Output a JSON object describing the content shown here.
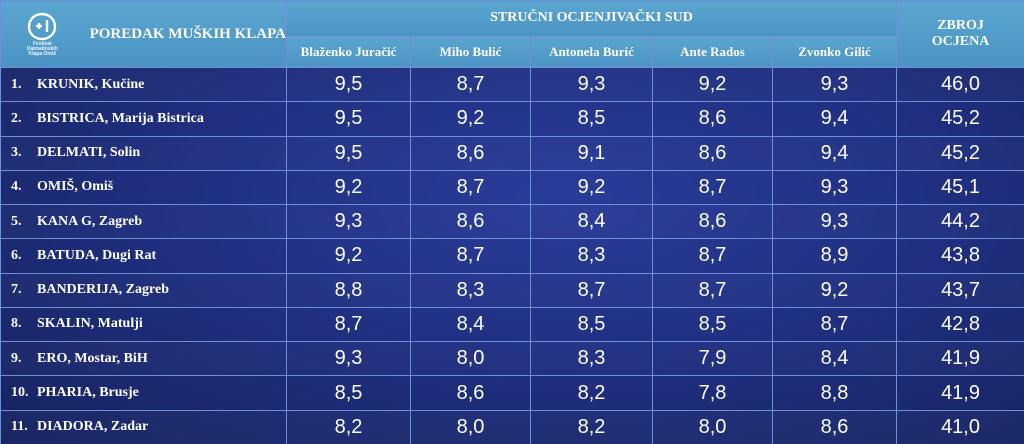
{
  "header": {
    "logo_text": [
      "Festival",
      "Dalmatinskih",
      "Klapa Omiš"
    ],
    "title": "POREDAK MUŠKIH KLAPA",
    "group_label": "STRUČNI OCJENJIVAČKI SUD",
    "total_label_line1": "ZBROJ",
    "total_label_line2": "OCJENA",
    "judges": [
      "Blaženko Juračić",
      "Miho Bulić",
      "Antonela Burić",
      "Ante Rados",
      "Zvonko Gilić"
    ]
  },
  "colors": {
    "header_bg": "#4f9ac8",
    "body_bg": "#1e2d7c",
    "grid": "#6f8fd8",
    "text": "#ffffff"
  },
  "rows": [
    {
      "rank": "1.",
      "name": "KRUNIK, Kučine",
      "scores": [
        "9,5",
        "8,7",
        "9,3",
        "9,2",
        "9,3"
      ],
      "total": "46,0"
    },
    {
      "rank": "2.",
      "name": "BISTRICA, Marija Bistrica",
      "scores": [
        "9,5",
        "9,2",
        "8,5",
        "8,6",
        "9,4"
      ],
      "total": "45,2"
    },
    {
      "rank": "3.",
      "name": "DELMATI, Solin",
      "scores": [
        "9,5",
        "8,6",
        "9,1",
        "8,6",
        "9,4"
      ],
      "total": "45,2"
    },
    {
      "rank": "4.",
      "name": "OMIŠ, Omiš",
      "scores": [
        "9,2",
        "8,7",
        "9,2",
        "8,7",
        "9,3"
      ],
      "total": "45,1"
    },
    {
      "rank": "5.",
      "name": "KANA G, Zagreb",
      "scores": [
        "9,3",
        "8,6",
        "8,4",
        "8,6",
        "9,3"
      ],
      "total": "44,2"
    },
    {
      "rank": "6.",
      "name": "BATUDA, Dugi Rat",
      "scores": [
        "9,2",
        "8,7",
        "8,3",
        "8,7",
        "8,9"
      ],
      "total": "43,8"
    },
    {
      "rank": "7.",
      "name": "BANDERIJA, Zagreb",
      "scores": [
        "8,8",
        "8,3",
        "8,7",
        "8,7",
        "9,2"
      ],
      "total": "43,7"
    },
    {
      "rank": "8.",
      "name": "SKALIN, Matulji",
      "scores": [
        "8,7",
        "8,4",
        "8,5",
        "8,5",
        "8,7"
      ],
      "total": "42,8"
    },
    {
      "rank": "9.",
      "name": "ERO, Mostar, BiH",
      "scores": [
        "9,3",
        "8,0",
        "8,3",
        "7,9",
        "8,4"
      ],
      "total": "41,9"
    },
    {
      "rank": "10.",
      "name": "PHARIA, Brusje",
      "scores": [
        "8,5",
        "8,6",
        "8,2",
        "7,8",
        "8,8"
      ],
      "total": "41,9"
    },
    {
      "rank": "11.",
      "name": "DIADORA, Zadar",
      "scores": [
        "8,2",
        "8,0",
        "8,2",
        "8,0",
        "8,6"
      ],
      "total": "41,0"
    }
  ]
}
